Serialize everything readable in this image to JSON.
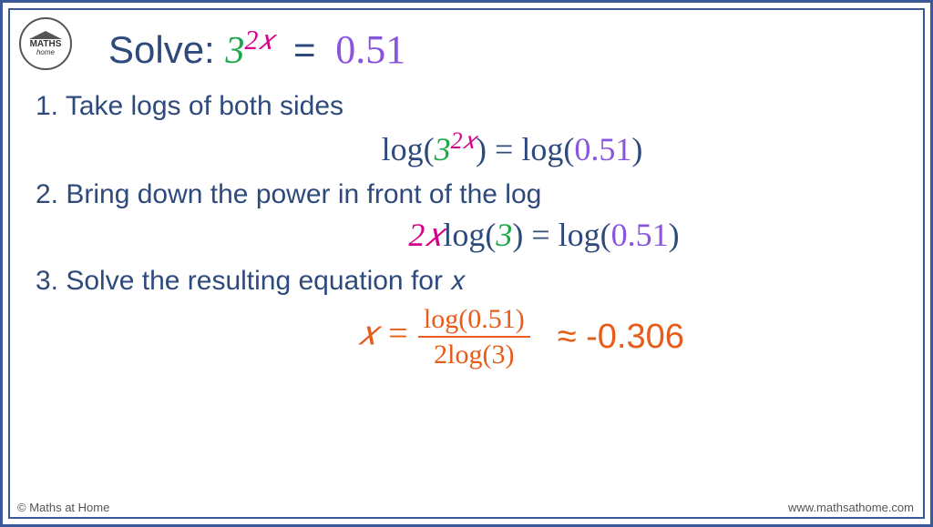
{
  "logo": {
    "line1": "MATHS",
    "line2": "home"
  },
  "header": {
    "solve_label": "Solve:  ",
    "base": "3",
    "exponent": "2𝑥",
    "equals": "=",
    "rhs": "0.51"
  },
  "step1": {
    "label": "1. Take logs of both sides",
    "eq_pre": "log(",
    "eq_base": "3",
    "eq_exp": "2𝑥",
    "eq_mid": ") = log(",
    "eq_rhs": "0.51",
    "eq_post": ")"
  },
  "step2": {
    "label": "2. Bring down the power in front of the log",
    "eq_coef": "2𝑥",
    "eq_log1": "log(",
    "eq_base": "3",
    "eq_mid": ") = log(",
    "eq_rhs": "0.51",
    "eq_post": ")"
  },
  "step3": {
    "label": "3. Solve the resulting equation for 𝑥",
    "x_var": "𝑥 = ",
    "frac_top": "log(0.51)",
    "frac_bot": "2log(3)",
    "approx": "≈ -0.306"
  },
  "footer": {
    "left": "© Maths at Home",
    "right": "www.mathsathome.com"
  },
  "colors": {
    "frame": "#3b5998",
    "text_primary": "#2e4a7d",
    "base_green": "#1ba84a",
    "exp_magenta": "#d6008b",
    "rhs_purple": "#8855dd",
    "answer_orange": "#e65c1a"
  }
}
